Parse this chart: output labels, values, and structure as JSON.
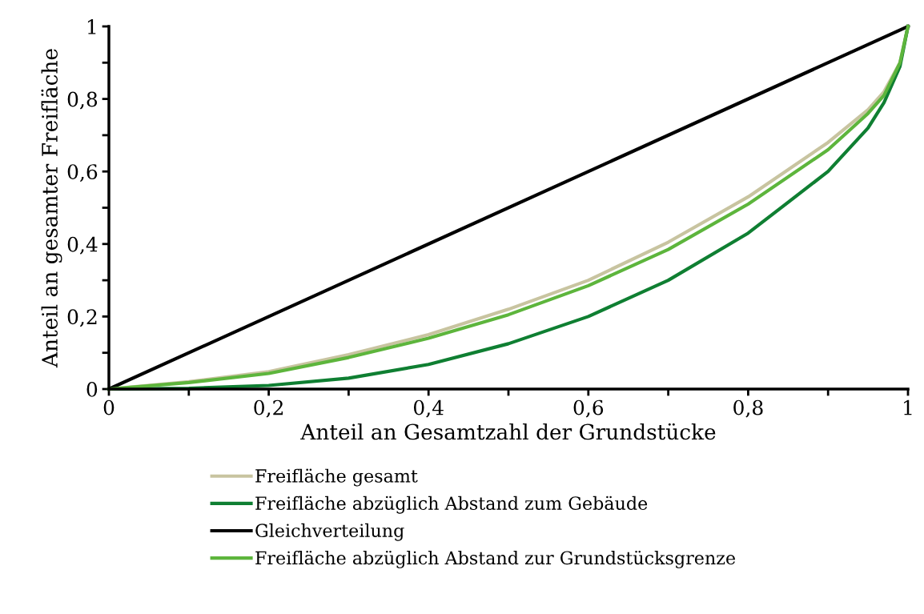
{
  "chart_data": {
    "type": "line",
    "xlabel": "Anteil an Gesamtzahl der Grundstücke",
    "ylabel": "Anteil an gesamter Freifläche",
    "xlim": [
      0,
      1
    ],
    "ylim": [
      0,
      1
    ],
    "xticks": [
      0,
      {
        "value": 0.1,
        "label": null
      },
      {
        "value": 0.2,
        "label": "0,2"
      },
      {
        "value": 0.3,
        "label": null
      },
      {
        "value": 0.4,
        "label": "0,4"
      },
      {
        "value": 0.5,
        "label": null
      },
      {
        "value": 0.6,
        "label": "0,6"
      },
      {
        "value": 0.7,
        "label": null
      },
      {
        "value": 0.8,
        "label": "0,8"
      },
      {
        "value": 0.9,
        "label": null
      },
      1
    ],
    "yticks": [
      0,
      {
        "value": 0.1,
        "label": null
      },
      {
        "value": 0.2,
        "label": "0,2"
      },
      {
        "value": 0.3,
        "label": null
      },
      {
        "value": 0.4,
        "label": "0,4"
      },
      {
        "value": 0.5,
        "label": null
      },
      {
        "value": 0.6,
        "label": "0,6"
      },
      {
        "value": 0.7,
        "label": null
      },
      {
        "value": 0.8,
        "label": "0,8"
      },
      {
        "value": 0.9,
        "label": null
      },
      1
    ],
    "x": [
      0,
      0.1,
      0.2,
      0.3,
      0.4,
      0.5,
      0.6,
      0.7,
      0.8,
      0.9,
      0.95,
      0.97,
      0.99,
      1
    ],
    "grid": false,
    "legend": "bottom",
    "marker": "none",
    "line_style": "solid",
    "series": [
      {
        "name": "Freifläche gesamt",
        "color": "#c8c4a0",
        "values": [
          0,
          0.02,
          0.048,
          0.095,
          0.15,
          0.22,
          0.3,
          0.405,
          0.53,
          0.68,
          0.77,
          0.82,
          0.9,
          1
        ]
      },
      {
        "name": "Freifläche abzüglich Abstand zum Gebäude",
        "color": "#0f7f32",
        "values": [
          0,
          0.002,
          0.01,
          0.03,
          0.068,
          0.125,
          0.2,
          0.3,
          0.43,
          0.6,
          0.72,
          0.79,
          0.89,
          1
        ]
      },
      {
        "name": "Gleichverteilung",
        "color": "#000000",
        "x": [
          0,
          1
        ],
        "values": [
          0,
          1
        ]
      },
      {
        "name": "Freifläche abzüglich Abstand zur Grundstücksgrenze",
        "color": "#5db53c",
        "values": [
          0,
          0.018,
          0.043,
          0.087,
          0.14,
          0.205,
          0.285,
          0.385,
          0.51,
          0.66,
          0.76,
          0.81,
          0.9,
          1
        ]
      }
    ]
  }
}
